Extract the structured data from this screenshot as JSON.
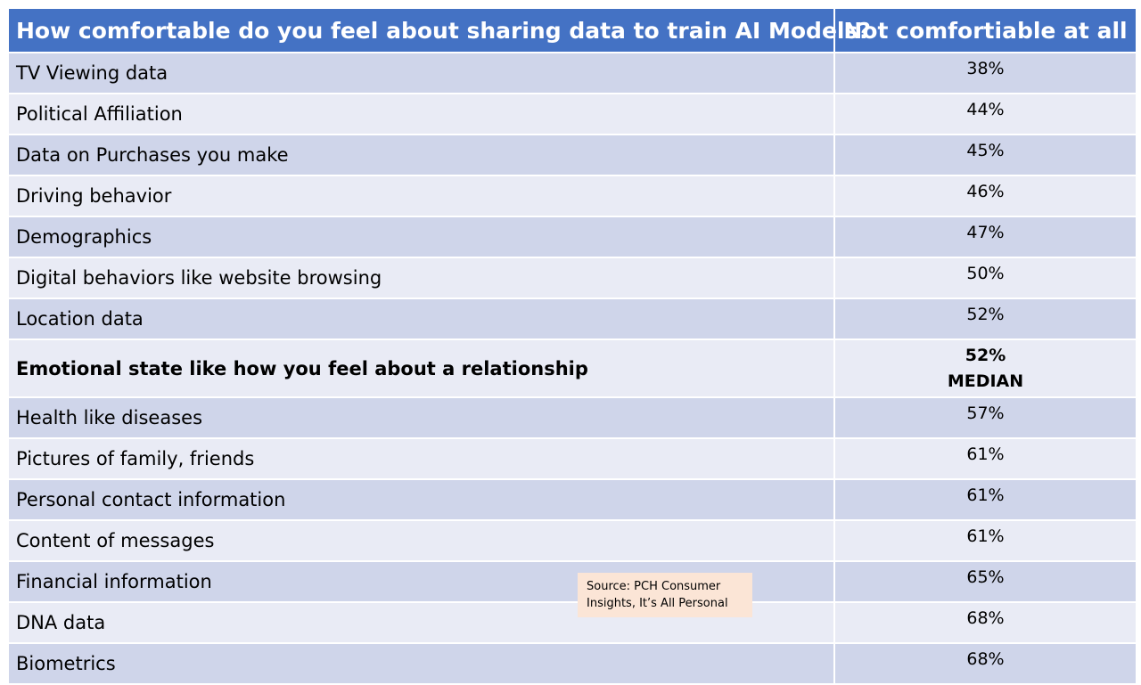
{
  "header": {
    "question": "How comfortable do you feel about sharing data to train AI Models?",
    "column": "Not comfortiable at all"
  },
  "table": {
    "rows": [
      {
        "label": "TV Viewing data",
        "value": "38%"
      },
      {
        "label": "Political Affiliation",
        "value": "44%"
      },
      {
        "label": "Data on Purchases you make",
        "value": "45%"
      },
      {
        "label": "Driving behavior",
        "value": "46%"
      },
      {
        "label": "Demographics",
        "value": "47%"
      },
      {
        "label": "Digital behaviors like website browsing",
        "value": "50%"
      },
      {
        "label": "Location data",
        "value": "52%"
      },
      {
        "label": "Emotional state like how you feel about a  relationship",
        "value": "52%",
        "note": "MEDIAN",
        "bold": true
      },
      {
        "label": "Health like diseases",
        "value": "57%"
      },
      {
        "label": "Pictures of family, friends",
        "value": "61%"
      },
      {
        "label": "Personal contact information",
        "value": "61%"
      },
      {
        "label": "Content of messages",
        "value": "61%"
      },
      {
        "label": "Financial information",
        "value": "65%"
      },
      {
        "label": "DNA data",
        "value": "68%"
      },
      {
        "label": "Biometrics",
        "value": "68%"
      }
    ]
  },
  "source": "Source: PCH Consumer Insights, It’s All Personal"
}
